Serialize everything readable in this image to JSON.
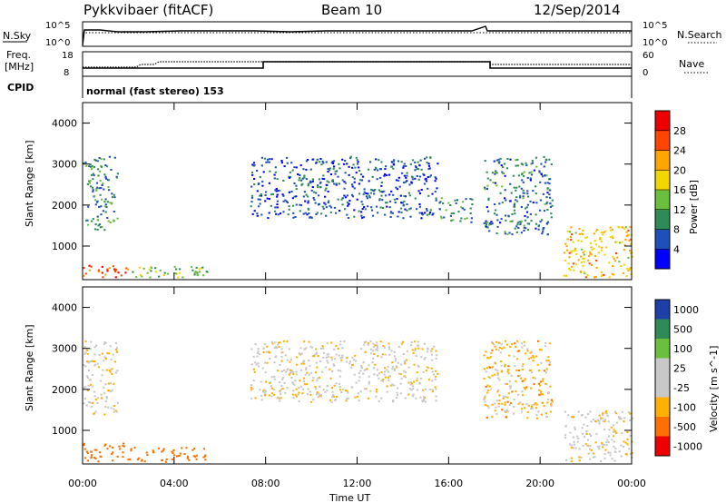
{
  "header": {
    "radar": "Pykkvibaer (fitACF)",
    "beam": "Beam 10",
    "date": "12/Sep/2014"
  },
  "top_panels": {
    "nsky_label": "N.Sky",
    "nsearch_label": "N.Search",
    "nsky_ticks": [
      "10^5",
      "10^0"
    ],
    "nsearch_ticks": [
      "10^5",
      "10^0"
    ],
    "freq_label_line1": "Freq.",
    "freq_label_line2": "[MHz]",
    "freq_ticks": [
      "18",
      "8"
    ],
    "nave_label": "Nave",
    "nave_ticks": [
      "60",
      "0"
    ],
    "cpid_label": "CPID",
    "cpid_text": "normal (fast stereo) 153"
  },
  "chart_data": [
    {
      "type": "heatmap",
      "title": "",
      "xlabel": "Time UT",
      "ylabel": "Slant Range [km]",
      "x_ticks": [
        "00:00",
        "04:00",
        "08:00",
        "12:00",
        "16:00",
        "20:00",
        "00:00"
      ],
      "x_range_hours": [
        0,
        24
      ],
      "ylim": [
        180,
        4500
      ],
      "y_ticks": [
        1000,
        2000,
        3000,
        4000
      ],
      "colorbar": {
        "label": "Power [dB]",
        "range": [
          0,
          32
        ],
        "ticks": [
          4,
          8,
          12,
          16,
          20,
          24,
          28
        ],
        "colors": [
          "#0000ff",
          "#1f4fb8",
          "#2e8b57",
          "#6cbf3c",
          "#f2d600",
          "#ffa500",
          "#ff4500",
          "#ee0000"
        ]
      },
      "echo_regions": [
        {
          "t0": 0.0,
          "t1": 2.0,
          "r0": 250,
          "r1": 600,
          "level": 27
        },
        {
          "t0": 0.0,
          "t1": 1.5,
          "r0": 1400,
          "r1": 3200,
          "level": 9
        },
        {
          "t0": 2.0,
          "t1": 5.5,
          "r0": 250,
          "r1": 550,
          "level": 14
        },
        {
          "t0": 7.3,
          "t1": 15.5,
          "r0": 1700,
          "r1": 3200,
          "level": 6
        },
        {
          "t0": 15.5,
          "t1": 17.0,
          "r0": 1600,
          "r1": 2200,
          "level": 10
        },
        {
          "t0": 17.5,
          "t1": 20.5,
          "r0": 1300,
          "r1": 3200,
          "level": 8
        },
        {
          "t0": 21.0,
          "t1": 24.0,
          "r0": 250,
          "r1": 1500,
          "level": 20
        }
      ]
    },
    {
      "type": "heatmap",
      "title": "",
      "xlabel": "Time UT",
      "ylabel": "Slant Range [km]",
      "x_ticks": [
        "00:00",
        "04:00",
        "08:00",
        "12:00",
        "16:00",
        "20:00",
        "00:00"
      ],
      "x_range_hours": [
        0,
        24
      ],
      "ylim": [
        180,
        4500
      ],
      "y_ticks": [
        1000,
        2000,
        3000,
        4000
      ],
      "colorbar": {
        "label": "Velocity [m s^-1]",
        "tick_labels": [
          "1000",
          "500",
          "100",
          "25",
          "-25",
          "-100",
          "-500",
          "-1000"
        ],
        "colors": [
          "#1f3fa8",
          "#2e8b57",
          "#6cbf3c",
          "#c8c8c8",
          "#c8c8c8",
          "#ffb000",
          "#ff7000",
          "#ee0000"
        ]
      },
      "echo_regions": [
        {
          "t0": 0.0,
          "t1": 2.0,
          "r0": 250,
          "r1": 700,
          "velocity": -300
        },
        {
          "t0": 0.0,
          "t1": 1.5,
          "r0": 1400,
          "r1": 3200,
          "velocity": 0
        },
        {
          "t0": 2.0,
          "t1": 5.5,
          "r0": 250,
          "r1": 600,
          "velocity": -300
        },
        {
          "t0": 7.3,
          "t1": 15.5,
          "r0": 1700,
          "r1": 3200,
          "velocity": 0
        },
        {
          "t0": 17.5,
          "t1": 20.5,
          "r0": 1300,
          "r1": 3200,
          "velocity": -50
        },
        {
          "t0": 21.0,
          "t1": 24.0,
          "r0": 250,
          "r1": 1500,
          "velocity": 0
        }
      ]
    }
  ],
  "colors": {
    "axis": "#000000",
    "gray_scatter": "#c8c8c8"
  }
}
